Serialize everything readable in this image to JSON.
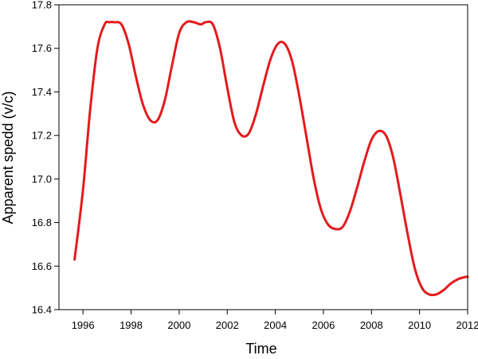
{
  "chart_data": {
    "type": "line",
    "xlabel": "Time",
    "ylabel": "Apparent spedd (v/c)",
    "xlim": [
      1995,
      2012
    ],
    "ylim": [
      16.4,
      17.8
    ],
    "x_ticks": [
      1996,
      1998,
      2000,
      2002,
      2004,
      2006,
      2008,
      2010,
      2012
    ],
    "y_ticks": [
      16.4,
      16.6,
      16.8,
      17.0,
      17.2,
      17.4,
      17.6,
      17.8
    ],
    "x_tick_labels": [
      "1996",
      "1998",
      "2000",
      "2002",
      "2004",
      "2006",
      "2008",
      "2010",
      "2012"
    ],
    "y_tick_labels": [
      "16.4",
      "16.6",
      "16.8",
      "17.0",
      "17.2",
      "17.4",
      "17.6",
      "17.8"
    ],
    "grid": false,
    "series": [
      {
        "color": "#e41a1c",
        "x": [
          1995.65,
          1996.0,
          1996.3,
          1996.6,
          1996.9,
          1997.1,
          1997.3,
          1997.6,
          1997.9,
          1998.2,
          1998.5,
          1998.8,
          1999.1,
          1999.4,
          1999.7,
          2000.0,
          2000.3,
          2000.6,
          2000.9,
          2001.1,
          2001.4,
          2001.7,
          2002.0,
          2002.3,
          2002.6,
          2002.9,
          2003.2,
          2003.5,
          2003.8,
          2004.1,
          2004.4,
          2004.7,
          2005.0,
          2005.3,
          2005.6,
          2005.9,
          2006.2,
          2006.5,
          2006.8,
          2007.1,
          2007.4,
          2007.7,
          2008.0,
          2008.3,
          2008.6,
          2008.9,
          2009.2,
          2009.5,
          2009.8,
          2010.1,
          2010.4,
          2010.7,
          2011.0,
          2011.3,
          2011.6,
          2011.9,
          2012.0
        ],
        "y": [
          16.63,
          16.95,
          17.32,
          17.6,
          17.71,
          17.72,
          17.72,
          17.71,
          17.62,
          17.47,
          17.34,
          17.27,
          17.27,
          17.36,
          17.52,
          17.67,
          17.72,
          17.72,
          17.71,
          17.72,
          17.71,
          17.6,
          17.42,
          17.26,
          17.2,
          17.21,
          17.3,
          17.43,
          17.55,
          17.62,
          17.62,
          17.54,
          17.38,
          17.19,
          17.0,
          16.86,
          16.79,
          16.77,
          16.78,
          16.85,
          16.96,
          17.08,
          17.18,
          17.22,
          17.2,
          17.1,
          16.93,
          16.75,
          16.59,
          16.5,
          16.47,
          16.47,
          16.49,
          16.52,
          16.54,
          16.55,
          16.55
        ]
      }
    ]
  }
}
